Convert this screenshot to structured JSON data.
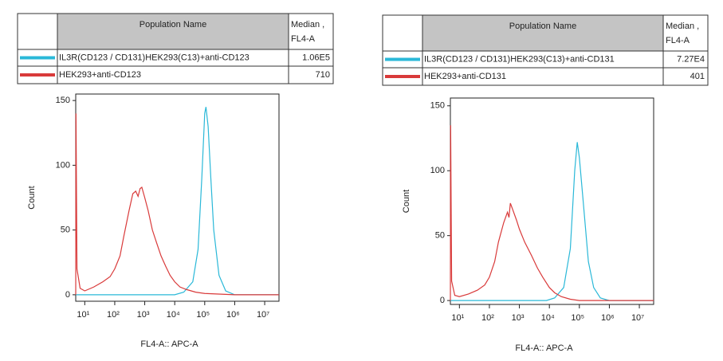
{
  "chart_data": [
    {
      "type": "line",
      "xlabel": "FL4-A:: APC-A",
      "ylabel": "Count",
      "xscale": "log",
      "header": {
        "name": "Population Name",
        "median": [
          "Median ,",
          "FL4-A"
        ]
      },
      "xlim": [
        5,
        30000000
      ],
      "ylim": [
        -5,
        155
      ],
      "xticks": [
        {
          "value": 10,
          "label": "10¹"
        },
        {
          "value": 100,
          "label": "10²"
        },
        {
          "value": 1000,
          "label": "10³"
        },
        {
          "value": 10000,
          "label": "10⁴"
        },
        {
          "value": 100000,
          "label": "10⁵"
        },
        {
          "value": 1000000,
          "label": "10⁶"
        },
        {
          "value": 10000000,
          "label": "10⁷"
        }
      ],
      "yticks": [
        0,
        50,
        100,
        150
      ],
      "series": [
        {
          "name": "IL3R(CD123 / CD131)HEK293(C13)+anti-CD123",
          "color": "#2ab8d8",
          "median_label": "1.06E5",
          "x": [
            5,
            10000,
            20000,
            40000,
            60000,
            80000,
            100000,
            110000,
            130000,
            160000,
            200000,
            300000,
            500000,
            1000000,
            30000000
          ],
          "values": [
            0,
            0,
            2,
            10,
            35,
            90,
            140,
            145,
            130,
            90,
            50,
            15,
            3,
            0,
            0
          ]
        },
        {
          "name": "HEK293+anti-CD123",
          "color": "#d93a3a",
          "median_label": "710",
          "x": [
            5,
            5.1,
            5.5,
            7,
            10,
            20,
            40,
            70,
            100,
            150,
            200,
            300,
            400,
            500,
            600,
            700,
            800,
            1000,
            1300,
            1800,
            2500,
            3500,
            5000,
            7000,
            10000,
            15000,
            25000,
            50000,
            100000,
            1000000,
            30000000
          ],
          "values": [
            0,
            140,
            20,
            5,
            3,
            6,
            10,
            14,
            20,
            30,
            45,
            65,
            78,
            80,
            76,
            82,
            83,
            75,
            65,
            50,
            40,
            30,
            22,
            15,
            10,
            6,
            4,
            2,
            1,
            0,
            0
          ]
        }
      ]
    },
    {
      "type": "line",
      "xlabel": "FL4-A:: APC-A",
      "ylabel": "Count",
      "xscale": "log",
      "header": {
        "name": "Population Name",
        "median": [
          "Median ,",
          "FL4-A"
        ]
      },
      "xlim": [
        5,
        30000000
      ],
      "ylim": [
        -3,
        156
      ],
      "xticks": [
        {
          "value": 10,
          "label": "10¹"
        },
        {
          "value": 100,
          "label": "10²"
        },
        {
          "value": 1000,
          "label": "10³"
        },
        {
          "value": 10000,
          "label": "10⁴"
        },
        {
          "value": 100000,
          "label": "10⁵"
        },
        {
          "value": 1000000,
          "label": "10⁶"
        },
        {
          "value": 10000000,
          "label": "10⁷"
        }
      ],
      "yticks": [
        0,
        50,
        100,
        150
      ],
      "series": [
        {
          "name": "IL3R(CD123 / CD131)HEK293(C13)+anti-CD131",
          "color": "#2ab8d8",
          "median_label": "7.27E4",
          "x": [
            5,
            8000,
            15000,
            30000,
            50000,
            70000,
            85000,
            100000,
            130000,
            200000,
            300000,
            500000,
            1000000,
            30000000
          ],
          "values": [
            0,
            0,
            2,
            10,
            40,
            100,
            122,
            110,
            80,
            30,
            10,
            2,
            0,
            0
          ]
        },
        {
          "name": "HEK293+anti-CD131",
          "color": "#d93a3a",
          "median_label": "401",
          "x": [
            5,
            5.1,
            5.5,
            7,
            10,
            20,
            40,
            70,
            100,
            150,
            200,
            300,
            400,
            450,
            500,
            600,
            800,
            1000,
            1500,
            2500,
            4000,
            6000,
            10000,
            15000,
            25000,
            50000,
            100000,
            30000000
          ],
          "values": [
            0,
            135,
            15,
            4,
            3,
            5,
            8,
            12,
            18,
            30,
            45,
            60,
            68,
            64,
            75,
            70,
            62,
            55,
            45,
            35,
            25,
            18,
            10,
            6,
            3,
            1,
            0,
            0
          ]
        }
      ]
    }
  ]
}
